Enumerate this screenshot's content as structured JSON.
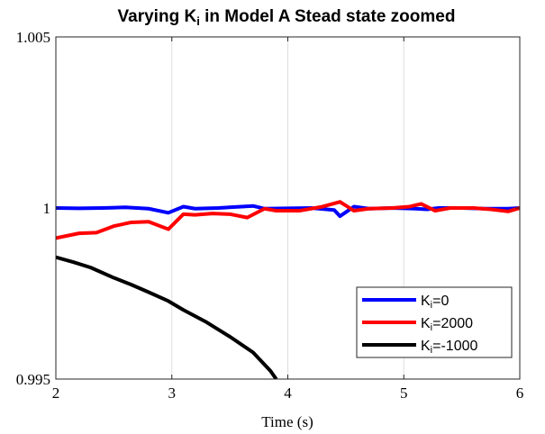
{
  "chart_data": {
    "type": "line",
    "title": {
      "prefix": "Varying K",
      "subscript": "i",
      "suffix": " in Model A Stead state zoomed"
    },
    "xlabel": "Time (s)",
    "ylabel": "",
    "xlim": [
      2,
      6
    ],
    "ylim": [
      0.995,
      1.005
    ],
    "x_ticks": [
      2,
      3,
      4,
      5,
      6
    ],
    "x_tick_labels": [
      "2",
      "3",
      "4",
      "5",
      "6"
    ],
    "y_ticks": [
      0.995,
      1,
      1.005
    ],
    "y_tick_labels": [
      "0.995",
      "1",
      "1.005"
    ],
    "grid": "x-only",
    "legend_position": "bottom-right",
    "series": [
      {
        "name": "Ki=0",
        "legend": {
          "prefix": "K",
          "subscript": "i",
          "suffix": "=0"
        },
        "color": "#0000ff",
        "points": [
          [
            2.0,
            1.0
          ],
          [
            2.2,
            0.99999
          ],
          [
            2.4,
            1.0
          ],
          [
            2.6,
            1.00002
          ],
          [
            2.8,
            0.99998
          ],
          [
            2.97,
            0.99986
          ],
          [
            3.1,
            1.00004
          ],
          [
            3.2,
            0.99998
          ],
          [
            3.4,
            1.0
          ],
          [
            3.6,
            1.00004
          ],
          [
            3.7,
            1.00006
          ],
          [
            3.8,
            0.99998
          ],
          [
            4.0,
            0.99999
          ],
          [
            4.2,
            1.0
          ],
          [
            4.4,
            0.99994
          ],
          [
            4.45,
            0.99976
          ],
          [
            4.57,
            1.00004
          ],
          [
            4.7,
            0.99998
          ],
          [
            4.9,
            1.0
          ],
          [
            5.1,
            0.99998
          ],
          [
            5.2,
            0.99996
          ],
          [
            5.3,
            1.0
          ],
          [
            5.5,
            1.0
          ],
          [
            5.7,
            0.99998
          ],
          [
            5.9,
            0.99998
          ],
          [
            6.0,
            1.0
          ]
        ]
      },
      {
        "name": "Ki=2000",
        "legend": {
          "prefix": "K",
          "subscript": "i",
          "suffix": "=2000"
        },
        "color": "#ff0000",
        "points": [
          [
            2.0,
            0.99912
          ],
          [
            2.2,
            0.99926
          ],
          [
            2.35,
            0.99928
          ],
          [
            2.5,
            0.99947
          ],
          [
            2.65,
            0.99958
          ],
          [
            2.8,
            0.9996
          ],
          [
            2.97,
            0.99938
          ],
          [
            3.1,
            0.99982
          ],
          [
            3.2,
            0.9998
          ],
          [
            3.35,
            0.99984
          ],
          [
            3.5,
            0.99982
          ],
          [
            3.65,
            0.99972
          ],
          [
            3.8,
            0.99998
          ],
          [
            3.9,
            0.99992
          ],
          [
            4.1,
            0.99992
          ],
          [
            4.3,
            1.00004
          ],
          [
            4.45,
            1.00018
          ],
          [
            4.57,
            0.99992
          ],
          [
            4.7,
            0.99998
          ],
          [
            4.9,
            1.0
          ],
          [
            5.05,
            1.00004
          ],
          [
            5.15,
            1.00012
          ],
          [
            5.27,
            0.99992
          ],
          [
            5.4,
            1.0
          ],
          [
            5.6,
            1.0
          ],
          [
            5.75,
            0.99996
          ],
          [
            5.9,
            0.9999
          ],
          [
            6.0,
            1.0
          ]
        ]
      },
      {
        "name": "Ki=-1000",
        "legend": {
          "prefix": "K",
          "subscript": "i",
          "suffix": "=-1000"
        },
        "color": "#000000",
        "points": [
          [
            2.0,
            0.99856
          ],
          [
            2.15,
            0.99842
          ],
          [
            2.3,
            0.99826
          ],
          [
            2.5,
            0.99796
          ],
          [
            2.65,
            0.99776
          ],
          [
            2.8,
            0.99754
          ],
          [
            2.97,
            0.99728
          ],
          [
            3.1,
            0.99702
          ],
          [
            3.3,
            0.99666
          ],
          [
            3.5,
            0.99624
          ],
          [
            3.7,
            0.99578
          ],
          [
            3.85,
            0.99524
          ],
          [
            3.9,
            0.995
          ]
        ]
      }
    ]
  }
}
